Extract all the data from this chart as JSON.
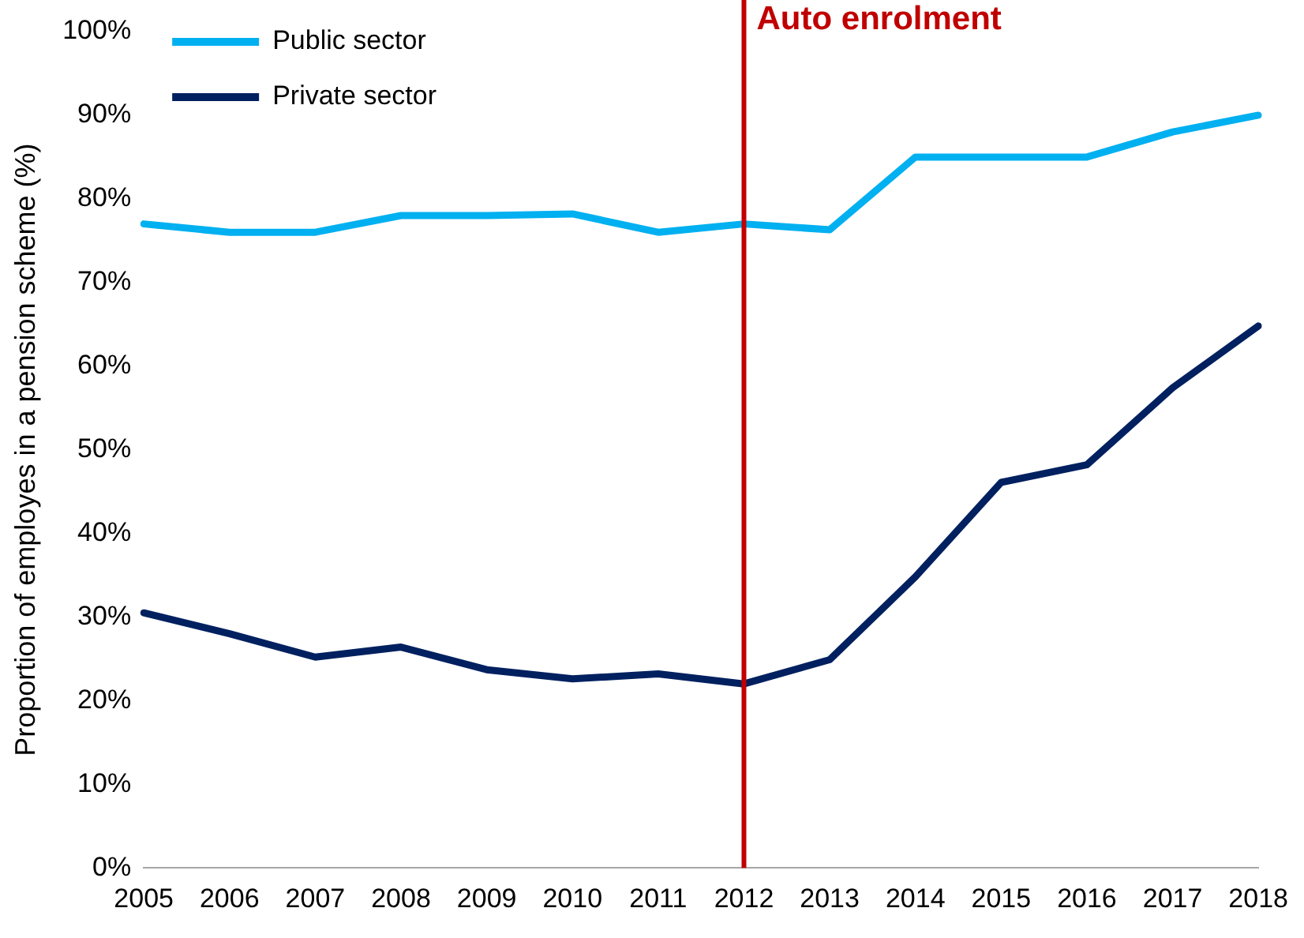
{
  "chart_data": {
    "type": "line",
    "ylabel": "Proportion of employes in a pension scheme (%)",
    "categories": [
      "2005",
      "2006",
      "2007",
      "2008",
      "2009",
      "2010",
      "2011",
      "2012",
      "2013",
      "2014",
      "2015",
      "2016",
      "2017",
      "2018"
    ],
    "series": [
      {
        "name": "Public sector",
        "color": "#00b0f0",
        "values": [
          77,
          76,
          76,
          78,
          78,
          78.2,
          76,
          77,
          76.3,
          85,
          85,
          85,
          88,
          90
        ]
      },
      {
        "name": "Private sector",
        "color": "#002060",
        "values": [
          30.5,
          28,
          25.2,
          26.4,
          23.7,
          22.6,
          23.2,
          22,
          24.9,
          34.8,
          46.1,
          48.2,
          57.4,
          64.8
        ]
      }
    ],
    "ylim": [
      0,
      100
    ],
    "yticks": [
      {
        "value": 0,
        "label": "0%"
      },
      {
        "value": 10,
        "label": "10%"
      },
      {
        "value": 20,
        "label": "20%"
      },
      {
        "value": 30,
        "label": "30%"
      },
      {
        "value": 40,
        "label": "40%"
      },
      {
        "value": 50,
        "label": "50%"
      },
      {
        "value": 60,
        "label": "60%"
      },
      {
        "value": 70,
        "label": "70%"
      },
      {
        "value": 80,
        "label": "80%"
      },
      {
        "value": 90,
        "label": "90%"
      },
      {
        "value": 100,
        "label": "100%"
      }
    ],
    "ref_lines": [
      {
        "axis": "x",
        "value": "2012",
        "label": "Auto enrolment",
        "color": "#c00000"
      }
    ],
    "legend": "top left",
    "marker": "none",
    "line_style": "solid"
  }
}
